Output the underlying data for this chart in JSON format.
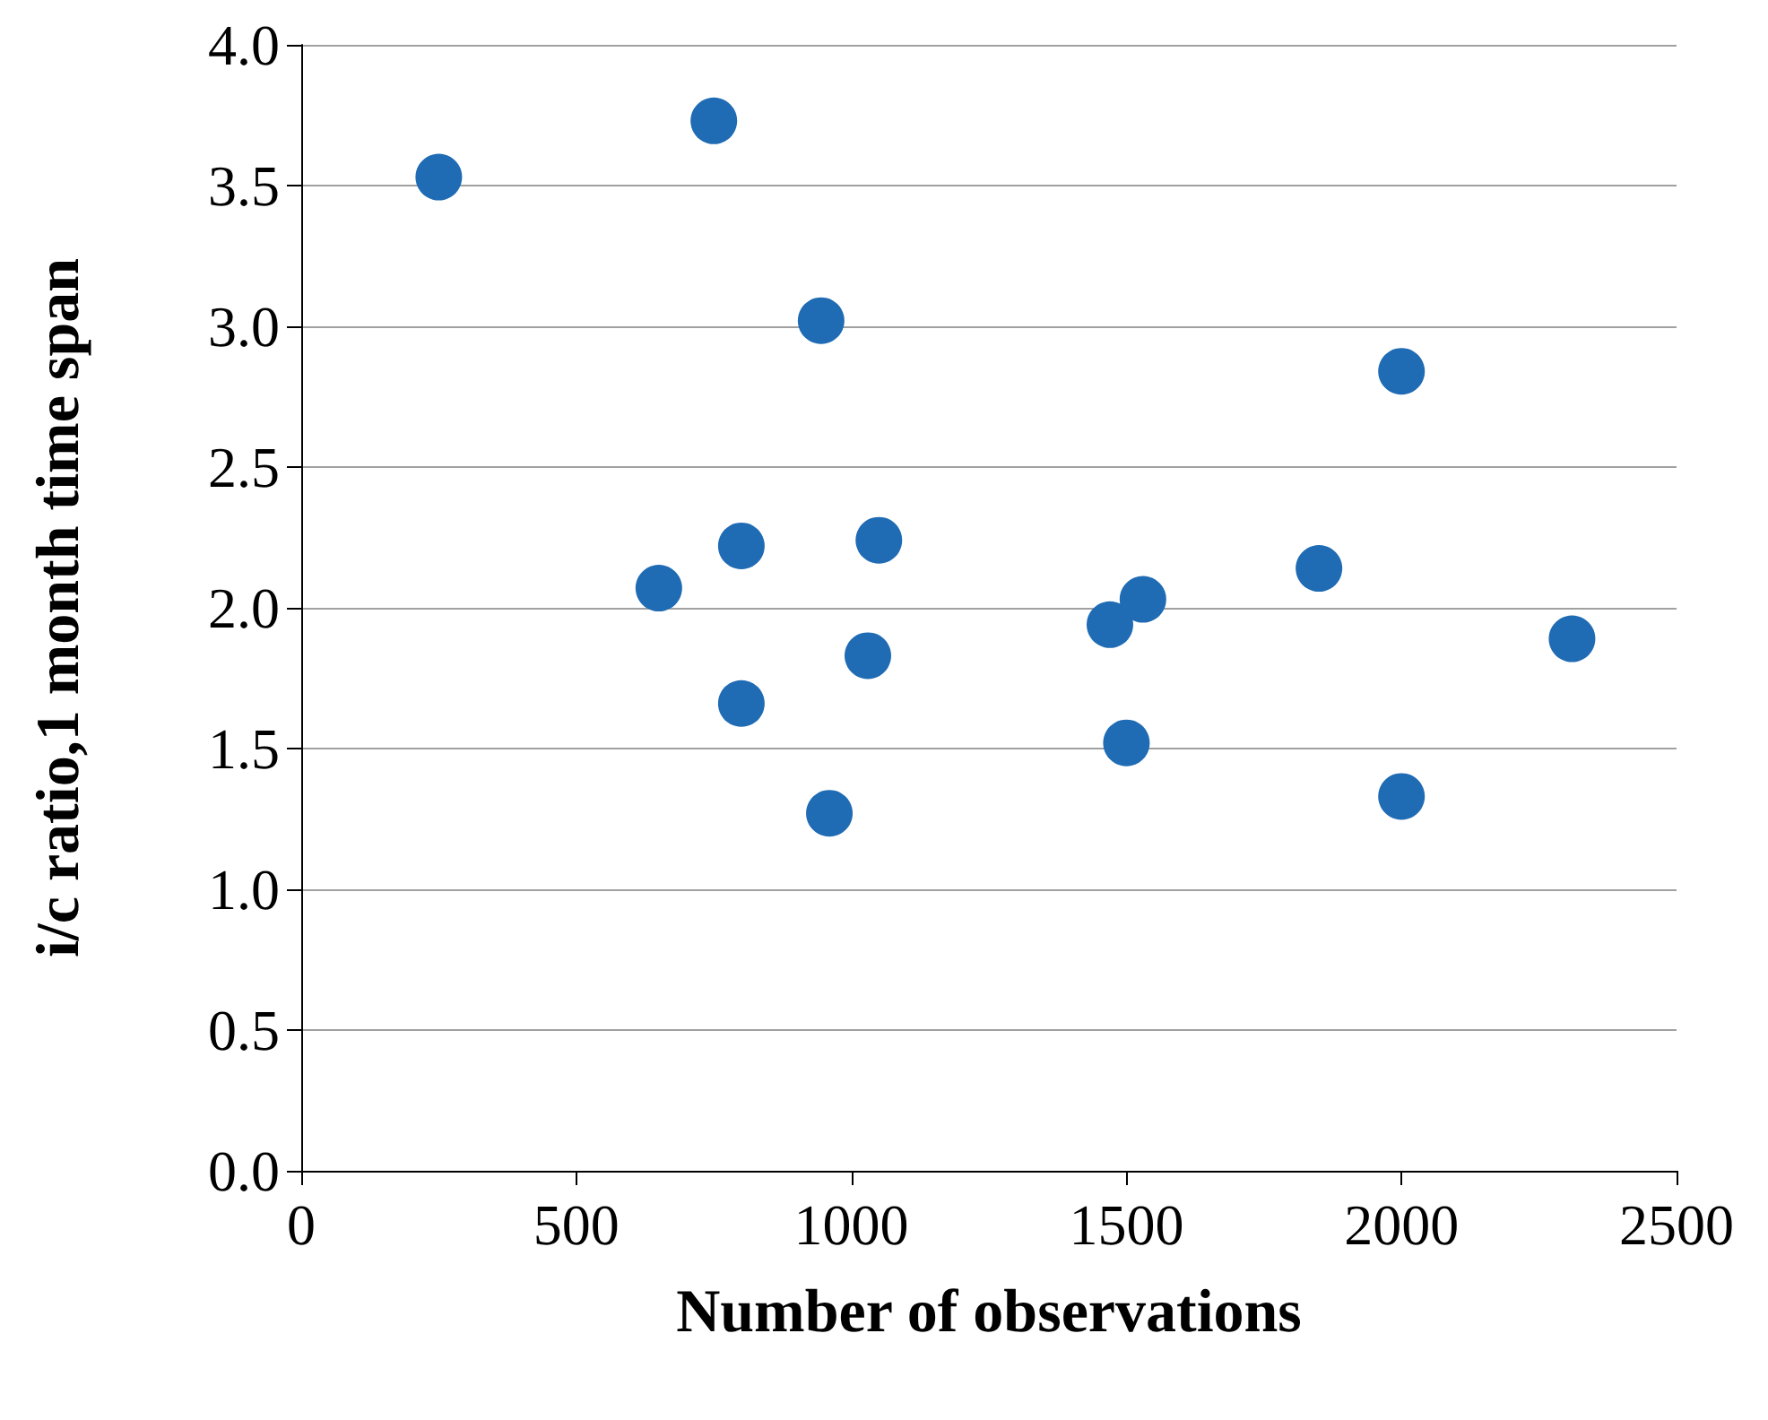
{
  "chart_data": {
    "type": "scatter",
    "xlabel": "Number of observations",
    "ylabel": "i/c ratio,1 month time span",
    "x": [
      250,
      750,
      945,
      2000,
      650,
      800,
      1050,
      1030,
      800,
      960,
      1470,
      1530,
      1500,
      1850,
      2000,
      2310
    ],
    "series": [
      {
        "color": "#1f6bb4",
        "values": [
          3.53,
          3.73,
          3.02,
          2.84,
          2.07,
          2.22,
          2.24,
          1.83,
          1.66,
          1.27,
          1.94,
          2.03,
          1.52,
          2.14,
          1.33,
          1.89
        ]
      }
    ],
    "xlim": [
      0,
      2500
    ],
    "xticks": [
      0,
      500,
      1000,
      1500,
      2000,
      2500
    ],
    "ylim": [
      0,
      4
    ],
    "yticks": [
      {
        "value": 0,
        "label": "0.0"
      },
      {
        "value": 0.5,
        "label": "0.5"
      },
      {
        "value": 1,
        "label": "1.0"
      },
      {
        "value": 1.5,
        "label": "1.5"
      },
      {
        "value": 2,
        "label": "2.0"
      },
      {
        "value": 2.5,
        "label": "2.5"
      },
      {
        "value": 3,
        "label": "3.0"
      },
      {
        "value": 3.5,
        "label": "3.5"
      },
      {
        "value": 4,
        "label": "4.0"
      }
    ],
    "grid": "y",
    "marker": "circle"
  }
}
